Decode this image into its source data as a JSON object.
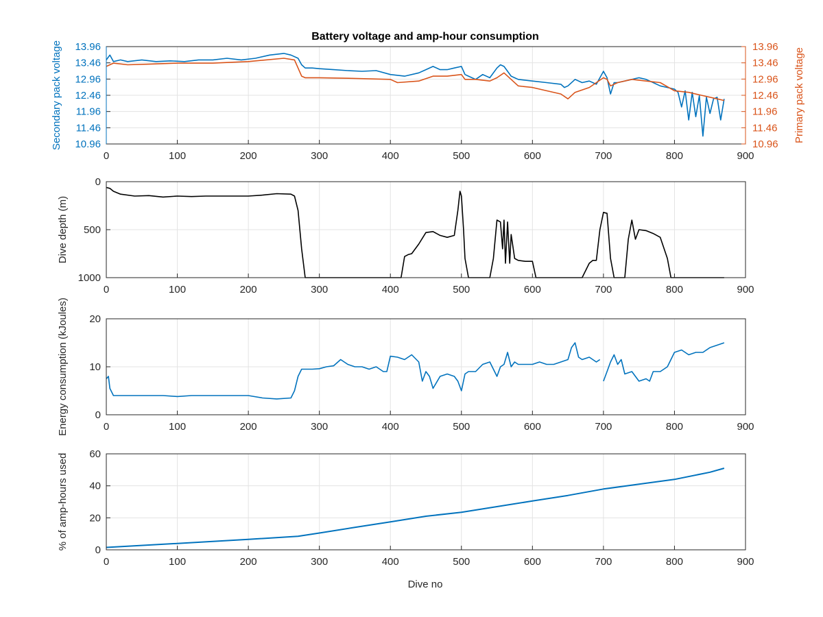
{
  "figure": {
    "title": "Battery voltage and amp-hour consumption",
    "xlabel": "Dive no"
  },
  "colors": {
    "blue": "#0072BD",
    "orange": "#D95319",
    "black": "#000000",
    "grid": "#e3e3e3",
    "axis": "#262626"
  },
  "chart_data": [
    {
      "id": "voltage",
      "type": "line",
      "title": "Battery voltage and amp-hour consumption",
      "xlabel": "",
      "ylabel": "Secondary pack voltage",
      "ylabel_right": "Primary pack voltage",
      "xlim": [
        0,
        900
      ],
      "ylim": [
        10.96,
        13.96
      ],
      "x_ticks": [
        0,
        100,
        200,
        300,
        400,
        500,
        600,
        700,
        800,
        900
      ],
      "y_ticks": [
        "10.96",
        "11.46",
        "11.96",
        "12.46",
        "12.96",
        "13.46",
        "13.96"
      ],
      "y_ticks_right": [
        "10.96",
        "11.46",
        "11.96",
        "12.46",
        "12.96",
        "13.46",
        "13.96"
      ],
      "grid": true,
      "series": [
        {
          "axis": "left",
          "color": "#0072BD",
          "x": [
            0,
            5,
            10,
            20,
            30,
            50,
            70,
            90,
            110,
            130,
            150,
            170,
            190,
            210,
            230,
            250,
            260,
            270,
            275,
            280,
            290,
            300,
            320,
            340,
            360,
            380,
            400,
            420,
            440,
            450,
            460,
            470,
            480,
            490,
            500,
            505,
            510,
            520,
            530,
            540,
            550,
            555,
            560,
            565,
            570,
            580,
            600,
            620,
            640,
            645,
            650,
            660,
            670,
            680,
            690,
            700,
            705,
            710,
            715,
            720,
            740,
            750,
            760,
            770,
            780,
            790,
            800,
            805,
            810,
            815,
            820,
            825,
            830,
            835,
            840,
            845,
            850,
            855,
            860,
            865,
            870
          ],
          "y": [
            13.55,
            13.7,
            13.5,
            13.55,
            13.5,
            13.55,
            13.5,
            13.52,
            13.5,
            13.55,
            13.55,
            13.6,
            13.55,
            13.6,
            13.7,
            13.75,
            13.7,
            13.6,
            13.4,
            13.3,
            13.3,
            13.28,
            13.25,
            13.22,
            13.2,
            13.22,
            13.1,
            13.05,
            13.15,
            13.25,
            13.35,
            13.25,
            13.25,
            13.3,
            13.35,
            13.1,
            13.05,
            12.95,
            13.1,
            13.0,
            13.3,
            13.4,
            13.35,
            13.2,
            13.05,
            12.95,
            12.9,
            12.85,
            12.8,
            12.7,
            12.75,
            12.95,
            12.85,
            12.9,
            12.8,
            13.2,
            13.0,
            12.5,
            12.85,
            12.85,
            12.95,
            13.0,
            12.95,
            12.85,
            12.75,
            12.7,
            12.65,
            12.55,
            12.1,
            12.6,
            11.7,
            12.55,
            11.8,
            12.45,
            11.2,
            12.4,
            11.9,
            12.35,
            12.4,
            11.7,
            12.35
          ]
        },
        {
          "axis": "right",
          "color": "#D95319",
          "x": [
            0,
            10,
            30,
            60,
            100,
            150,
            200,
            250,
            265,
            270,
            275,
            280,
            300,
            350,
            400,
            410,
            440,
            460,
            480,
            500,
            505,
            520,
            540,
            550,
            560,
            580,
            600,
            620,
            640,
            650,
            660,
            680,
            700,
            705,
            710,
            720,
            740,
            760,
            780,
            800,
            820,
            840,
            860,
            870
          ],
          "y": [
            13.35,
            13.45,
            13.4,
            13.42,
            13.45,
            13.45,
            13.5,
            13.6,
            13.55,
            13.3,
            13.05,
            13.0,
            13.0,
            12.98,
            12.95,
            12.85,
            12.9,
            13.05,
            13.05,
            13.1,
            12.95,
            12.95,
            12.9,
            13.0,
            13.15,
            12.75,
            12.7,
            12.6,
            12.5,
            12.35,
            12.55,
            12.7,
            13.0,
            12.95,
            12.75,
            12.85,
            12.95,
            12.9,
            12.85,
            12.6,
            12.55,
            12.45,
            12.35,
            12.3
          ]
        }
      ]
    },
    {
      "id": "depth",
      "type": "line",
      "title": "",
      "xlabel": "",
      "ylabel": "Dive depth (m)",
      "xlim": [
        0,
        900
      ],
      "ylim": [
        0,
        1000
      ],
      "y_reversed": true,
      "x_ticks": [
        0,
        100,
        200,
        300,
        400,
        500,
        600,
        700,
        800,
        900
      ],
      "y_ticks": [
        0,
        500,
        1000
      ],
      "grid": true,
      "series": [
        {
          "color": "#000000",
          "x": [
            0,
            5,
            10,
            20,
            40,
            60,
            80,
            100,
            120,
            140,
            160,
            180,
            200,
            220,
            240,
            260,
            265,
            270,
            275,
            280,
            290,
            300,
            350,
            400,
            415,
            420,
            425,
            430,
            440,
            450,
            460,
            470,
            480,
            490,
            495,
            498,
            500,
            503,
            505,
            510,
            520,
            540,
            545,
            550,
            555,
            558,
            560,
            562,
            565,
            568,
            570,
            575,
            580,
            590,
            600,
            605,
            610,
            650,
            670,
            680,
            685,
            690,
            695,
            700,
            705,
            710,
            715,
            720,
            730,
            735,
            740,
            745,
            750,
            760,
            770,
            780,
            790,
            795,
            800,
            820,
            850,
            870
          ],
          "y": [
            60,
            70,
            100,
            130,
            150,
            145,
            160,
            150,
            155,
            150,
            150,
            150,
            150,
            140,
            125,
            130,
            150,
            300,
            700,
            1000,
            1000,
            1000,
            1000,
            1000,
            1000,
            780,
            760,
            750,
            650,
            530,
            520,
            560,
            580,
            560,
            300,
            100,
            150,
            500,
            800,
            1000,
            1000,
            1000,
            800,
            400,
            420,
            700,
            400,
            850,
            420,
            850,
            550,
            800,
            820,
            830,
            830,
            1000,
            1000,
            1000,
            1000,
            850,
            820,
            820,
            500,
            320,
            330,
            800,
            1000,
            1000,
            1000,
            600,
            400,
            600,
            500,
            510,
            540,
            580,
            800,
            1000,
            1000,
            1000,
            1000,
            1000
          ]
        }
      ]
    },
    {
      "id": "energy",
      "type": "line",
      "title": "",
      "xlabel": "",
      "ylabel": "Energy consumption (kJoules)",
      "xlim": [
        0,
        900
      ],
      "ylim": [
        0,
        20
      ],
      "x_ticks": [
        0,
        100,
        200,
        300,
        400,
        500,
        600,
        700,
        800,
        900
      ],
      "y_ticks": [
        0,
        10,
        20
      ],
      "grid": true,
      "series": [
        {
          "color": "#0072BD",
          "segments": [
            {
              "x": [
                0,
                3,
                5,
                10,
                20,
                50,
                80,
                100,
                120,
                150,
                180,
                200,
                220,
                240,
                260,
                265,
                270,
                275,
                280,
                290,
                300,
                310,
                320,
                330,
                340,
                350,
                360,
                370,
                380,
                390,
                395,
                400,
                410,
                420,
                430,
                440,
                445,
                450,
                455,
                460,
                470,
                480,
                490,
                495,
                500,
                505,
                510,
                520,
                530,
                540,
                550,
                555,
                560,
                565,
                570,
                575,
                580,
                590,
                600,
                610,
                620,
                630,
                640,
                650,
                655,
                660,
                665,
                670,
                680,
                690,
                695
              ],
              "y": [
                7.5,
                8,
                5.5,
                4,
                4,
                4,
                4,
                3.8,
                4,
                4,
                4,
                4,
                3.5,
                3.3,
                3.5,
                5,
                8,
                9.5,
                9.5,
                9.5,
                9.6,
                10,
                10.2,
                11.5,
                10.5,
                10,
                10,
                9.5,
                10,
                9,
                9,
                12.2,
                12,
                11.5,
                12.5,
                11,
                7,
                9,
                8,
                5.5,
                8,
                8.5,
                8,
                7,
                5,
                8.5,
                9,
                9,
                10.5,
                11,
                8,
                10,
                10.5,
                13,
                10,
                11,
                10.5,
                10.5,
                10.5,
                11,
                10.5,
                10.5,
                11,
                11.5,
                14,
                15,
                12,
                11.5,
                12,
                11,
                11.5
              ]
            },
            {
              "x": [
                700,
                705,
                710,
                715,
                720,
                725,
                730,
                740,
                750,
                760,
                765,
                770,
                780,
                790,
                800,
                810,
                820,
                830,
                840,
                850,
                860,
                870
              ],
              "y": [
                7,
                9,
                11,
                12.5,
                10.5,
                11.5,
                8.5,
                9,
                7,
                7.5,
                7,
                9,
                9,
                10,
                13,
                13.5,
                12.5,
                13,
                13,
                14,
                14.5,
                15
              ]
            }
          ]
        }
      ]
    },
    {
      "id": "amphours",
      "type": "line",
      "title": "",
      "xlabel": "Dive no",
      "ylabel": "% of amp-hours used",
      "xlim": [
        0,
        900
      ],
      "ylim": [
        0,
        60
      ],
      "x_ticks": [
        0,
        100,
        200,
        300,
        400,
        500,
        600,
        700,
        800,
        900
      ],
      "y_ticks": [
        0,
        20,
        40,
        60
      ],
      "grid": true,
      "series": [
        {
          "color": "#0072BD",
          "x": [
            0,
            100,
            200,
            270,
            300,
            350,
            400,
            450,
            500,
            550,
            600,
            650,
            700,
            750,
            800,
            850,
            870
          ],
          "y": [
            1.5,
            4,
            6.5,
            8.5,
            10.5,
            14,
            17.5,
            21,
            23.5,
            27,
            30.5,
            34,
            38,
            41,
            44,
            48.5,
            51
          ]
        }
      ]
    }
  ]
}
